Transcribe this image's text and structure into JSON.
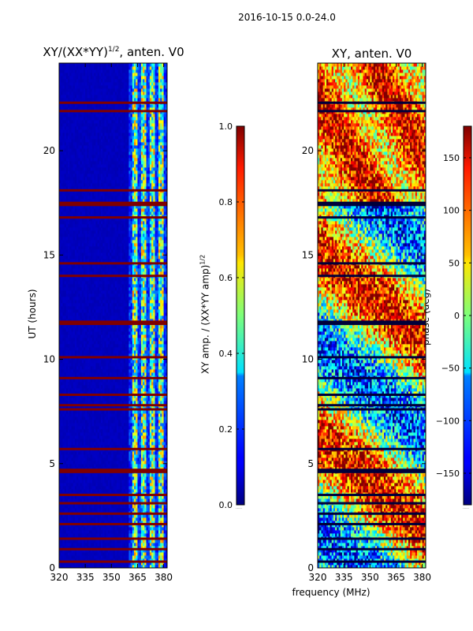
{
  "suptitle": "2016-10-15 0.0-24.0",
  "panels": [
    {
      "title": "XY/(XX*YY)",
      "title_sup": "1/2",
      "title_suffix": ", anten. V0"
    },
    {
      "title": "XY, anten. V0",
      "title_sup": "",
      "title_suffix": ""
    }
  ],
  "ylabel": "UT (hours)",
  "xlabel_shared": "frequency (MHz)",
  "colorbar1": {
    "label_main": "XY amp. / (XX*YY amp)",
    "label_sup": "1/2",
    "dots": "....."
  },
  "colorbar2": {
    "label": "phase (deg)",
    "dots": "....."
  },
  "chart_data": [
    {
      "type": "heatmap",
      "title": "XY/(XX*YY)^1/2, anten. V0",
      "xlabel": "",
      "ylabel": "UT (hours)",
      "xlim": [
        320,
        382
      ],
      "ylim": [
        0,
        24.2
      ],
      "xticks": [
        "320",
        "335",
        "350",
        "365",
        "380"
      ],
      "yticks": [
        "0",
        "5",
        "10",
        "15",
        "20"
      ],
      "colorbar": {
        "label": "XY amp. / (XX*YY amp)^1/2",
        "range": [
          0.0,
          1.0
        ],
        "ticks": [
          "0.0",
          "0.2",
          "0.4",
          "0.6",
          "0.8",
          "1.0"
        ]
      },
      "colormap": "jet",
      "features": {
        "background_level": 0.05,
        "bright_band_MHz": [
          360,
          382
        ],
        "saturated_rows_hours": [
          0.3,
          0.9,
          1.4,
          2.1,
          2.6,
          3.1,
          3.5,
          4.6,
          4.7,
          5.7,
          7.6,
          7.8,
          8.3,
          9.1,
          10.1,
          11.7,
          11.8,
          14.0,
          14.6,
          16.8,
          17.4,
          17.5,
          18.1,
          21.9,
          22.3
        ]
      }
    },
    {
      "type": "heatmap",
      "title": "XY, anten. V0",
      "xlabel": "frequency (MHz)",
      "ylabel": "",
      "xlim": [
        320,
        382
      ],
      "ylim": [
        0,
        24.2
      ],
      "xticks": [
        "320",
        "335",
        "350",
        "365",
        "380"
      ],
      "yticks": [
        "0",
        "5",
        "10",
        "15",
        "20"
      ],
      "colorbar": {
        "label": "phase (deg)",
        "range": [
          -180,
          180
        ],
        "ticks": [
          "−150",
          "−100",
          "−50",
          "0",
          "50",
          "100",
          "150"
        ],
        "tick_values": [
          -150,
          -100,
          -50,
          0,
          50,
          100,
          150
        ]
      },
      "colormap": "jet",
      "features": {
        "saturated_rows_hours": [
          0.3,
          0.9,
          1.4,
          2.1,
          2.6,
          3.1,
          3.5,
          4.6,
          4.7,
          5.7,
          7.6,
          7.8,
          8.3,
          9.1,
          10.1,
          11.7,
          11.8,
          14.0,
          14.6,
          16.8,
          17.4,
          17.5,
          18.1,
          21.9,
          22.3
        ]
      }
    }
  ]
}
